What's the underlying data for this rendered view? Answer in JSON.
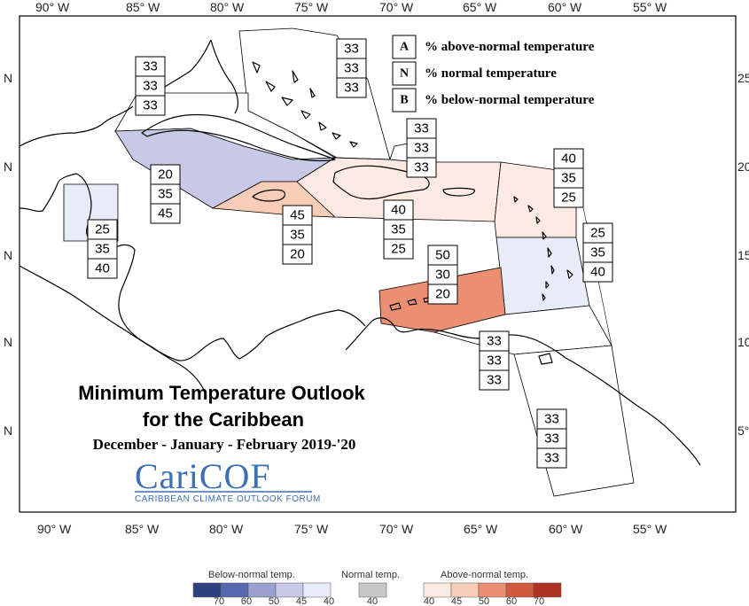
{
  "title": {
    "line1": "Minimum Temperature Outlook",
    "line2": "for the Caribbean",
    "period": "December - January - February 2019-'20"
  },
  "logo": {
    "name": "CariCOF",
    "tagline": "CARIBBEAN CLIMATE OUTLOOK FORUM"
  },
  "longitude_ticks": [
    "90° W",
    "85° W",
    "80° W",
    "75° W",
    "70° W",
    "65° W",
    "60° W",
    "55° W"
  ],
  "latitude_ticks": [
    "25",
    "20",
    "15",
    "10",
    "5°"
  ],
  "latitude_suffix": "N",
  "legend": {
    "items": [
      {
        "key": "A",
        "text": "% above-normal temperature"
      },
      {
        "key": "N",
        "text": "% normal temperature"
      },
      {
        "key": "B",
        "text": "% below-normal temperature"
      }
    ]
  },
  "zones": [
    {
      "id": "bahamas",
      "values": [
        "33",
        "33",
        "33"
      ],
      "fill": "#ffffff"
    },
    {
      "id": "gulf-north",
      "values": [
        "33",
        "33",
        "33"
      ],
      "fill": "#ffffff"
    },
    {
      "id": "cuba",
      "values": [
        "20",
        "35",
        "45"
      ],
      "fill": "#c7c9e6"
    },
    {
      "id": "jamaica",
      "values": [
        "45",
        "35",
        "20"
      ],
      "fill": "#f8cdb7"
    },
    {
      "id": "hispaniola-pr",
      "values": [
        "40",
        "35",
        "25"
      ],
      "fill": "#fdebe3"
    },
    {
      "id": "turks-caicos",
      "values": [
        "33",
        "33",
        "33"
      ],
      "fill": "#ffffff"
    },
    {
      "id": "leeward",
      "values": [
        "40",
        "35",
        "25"
      ],
      "fill": "#fdebe3"
    },
    {
      "id": "windward",
      "values": [
        "25",
        "35",
        "40"
      ],
      "fill": "#e8ecf8"
    },
    {
      "id": "belize",
      "values": [
        "25",
        "35",
        "40"
      ],
      "fill": "#e8ecf8"
    },
    {
      "id": "abc-islands",
      "values": [
        "50",
        "30",
        "20"
      ],
      "fill": "#eb8f72"
    },
    {
      "id": "trinidad",
      "values": [
        "33",
        "33",
        "33"
      ],
      "fill": "#ffffff"
    },
    {
      "id": "guianas",
      "values": [
        "33",
        "33",
        "33"
      ],
      "fill": "#ffffff"
    }
  ],
  "color_scale": {
    "below": {
      "label": "Below-normal temp.",
      "ticks": [
        "70",
        "60",
        "50",
        "45",
        "40"
      ],
      "colors": [
        "#2e3f80",
        "#5868b0",
        "#9aa0d2",
        "#c7c9e6",
        "#e8ecf8"
      ]
    },
    "normal": {
      "label": "Normal temp.",
      "ticks": [
        "40"
      ],
      "colors": [
        "#c8c8c8"
      ]
    },
    "above": {
      "label": "Above-normal temp.",
      "ticks": [
        "40",
        "45",
        "50",
        "60",
        "70"
      ],
      "colors": [
        "#fdebe3",
        "#f8cdb7",
        "#eb8f72",
        "#d05a3e",
        "#b03224"
      ]
    }
  }
}
